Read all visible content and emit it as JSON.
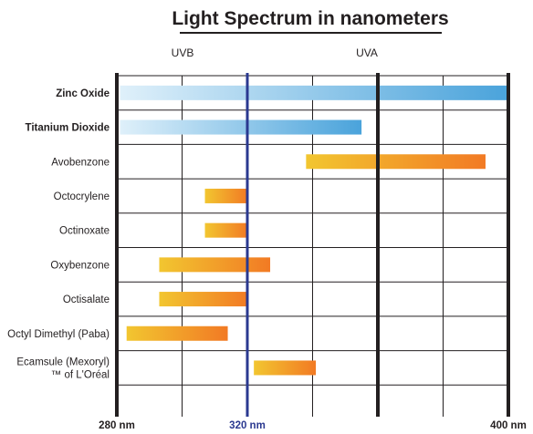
{
  "chart_data": {
    "type": "bar",
    "subtype": "floating-range",
    "title": "Light Spectrum in nanometers",
    "bands": [
      {
        "label": "UVB",
        "from": 280,
        "to": 320
      },
      {
        "label": "UVA",
        "from": 320,
        "to": 400
      }
    ],
    "xlim": [
      280,
      400
    ],
    "x_ticks": [
      {
        "label": "280 nm",
        "value": 280,
        "color": "#231f20"
      },
      {
        "label": "320 nm",
        "value": 320,
        "color": "#2b3990"
      },
      {
        "label": "400 nm",
        "value": 400,
        "color": "#231f20"
      }
    ],
    "thick_lines": [
      280,
      320,
      360,
      400
    ],
    "highlight_line": 320,
    "minor_lines": [
      300,
      340,
      380
    ],
    "grid": true,
    "series": [
      {
        "name": "Zinc Oxide",
        "label_lines": [
          "Zinc Oxide"
        ],
        "bold": true,
        "start": 281,
        "end": 400,
        "style": "blue"
      },
      {
        "name": "Titanium Dioxide",
        "label_lines": [
          "Titanium Dioxide"
        ],
        "bold": true,
        "start": 281,
        "end": 355,
        "style": "blue"
      },
      {
        "name": "Avobenzone",
        "label_lines": [
          "Avobenzone"
        ],
        "bold": false,
        "start": 338,
        "end": 393,
        "style": "orange"
      },
      {
        "name": "Octocrylene",
        "label_lines": [
          "Octocrylene"
        ],
        "bold": false,
        "start": 307,
        "end": 320,
        "style": "orange"
      },
      {
        "name": "Octinoxate",
        "label_lines": [
          "Octinoxate"
        ],
        "bold": false,
        "start": 307,
        "end": 320,
        "style": "orange"
      },
      {
        "name": "Oxybenzone",
        "label_lines": [
          "Oxybenzone"
        ],
        "bold": false,
        "start": 293,
        "end": 327,
        "style": "orange"
      },
      {
        "name": "Octisalate",
        "label_lines": [
          "Octisalate"
        ],
        "bold": false,
        "start": 293,
        "end": 320,
        "style": "orange"
      },
      {
        "name": "Octyl Dimethyl (Paba)",
        "label_lines": [
          "Octyl Dimethyl (Paba)"
        ],
        "bold": false,
        "start": 283,
        "end": 314,
        "style": "orange"
      },
      {
        "name": "Ecamsule (Mexoryl) ™ of L'Oréal",
        "label_lines": [
          "Ecamsule (Mexoryl)",
          "™ of L'Oréal"
        ],
        "bold": false,
        "start": 322,
        "end": 341,
        "style": "orange"
      }
    ],
    "colors": {
      "blue_start": "#dff0fa",
      "blue_end": "#4aa3db",
      "orange_start": "#f2c630",
      "orange_end": "#f27a24",
      "blue_line": "#2b3990",
      "grid": "#231f20"
    }
  }
}
